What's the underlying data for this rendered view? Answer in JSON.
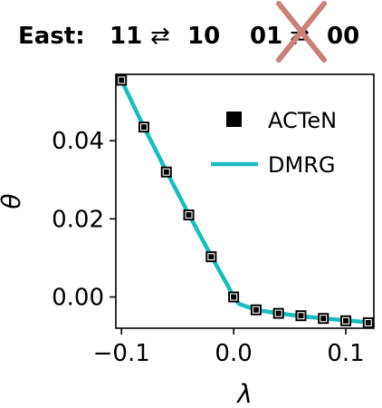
{
  "header": {
    "label": "East:",
    "pair1": {
      "left": "11",
      "arrow": "⇄",
      "right": "10"
    },
    "pair2": {
      "left": "01",
      "arrow": "⇄",
      "right": "00"
    },
    "cross_color": "#c9817a"
  },
  "chart_data": {
    "type": "scatter",
    "title": "",
    "xlabel": "λ",
    "ylabel": "θ",
    "xlim": [
      -0.105,
      0.125
    ],
    "ylim": [
      -0.008,
      0.057
    ],
    "xticks": [
      -0.1,
      0.0,
      0.1
    ],
    "xtick_labels": [
      "−0.1",
      "0.0",
      "0.1"
    ],
    "yticks": [
      0.0,
      0.02,
      0.04
    ],
    "ytick_labels": [
      "0.00",
      "0.02",
      "0.04"
    ],
    "grid": false,
    "legend_position": "top-right",
    "series": [
      {
        "name": "ACTeN",
        "kind": "markers",
        "color": "#000000",
        "x": [
          -0.1,
          -0.08,
          -0.06,
          -0.04,
          -0.02,
          0.0,
          0.02,
          0.04,
          0.06,
          0.08,
          0.1,
          0.12
        ],
        "y": [
          0.0555,
          0.0435,
          0.032,
          0.021,
          0.0103,
          0.0,
          -0.0033,
          -0.0042,
          -0.0048,
          -0.0055,
          -0.0061,
          -0.0066
        ]
      },
      {
        "name": "DMRG",
        "kind": "line",
        "color": "#1bbcbc",
        "x": [
          -0.1,
          -0.08,
          -0.06,
          -0.04,
          -0.02,
          -0.005,
          0.0,
          0.005,
          0.02,
          0.04,
          0.06,
          0.08,
          0.1,
          0.125
        ],
        "y": [
          0.0555,
          0.0435,
          0.0322,
          0.0212,
          0.0105,
          0.0028,
          0.0,
          -0.0018,
          -0.0033,
          -0.0042,
          -0.0049,
          -0.0055,
          -0.006,
          -0.0066
        ]
      }
    ]
  }
}
